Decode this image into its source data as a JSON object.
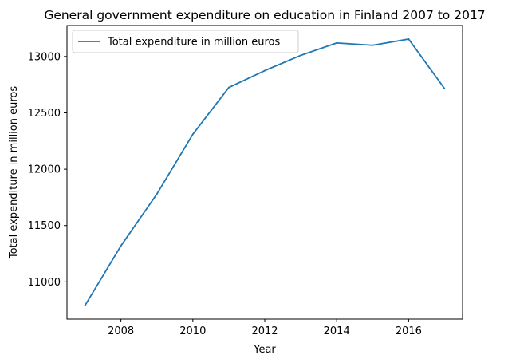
{
  "chart_data": {
    "type": "line",
    "title": "General government expenditure on education in Finland 2007 to 2017",
    "xlabel": "Year",
    "ylabel": "Total expenditure in million euros",
    "x": [
      2007,
      2008,
      2009,
      2010,
      2011,
      2012,
      2013,
      2014,
      2015,
      2016,
      2017
    ],
    "series": [
      {
        "name": "Total expenditure in million euros",
        "color": "#1f77b4",
        "values": [
          10790,
          11320,
          11780,
          12310,
          12725,
          12875,
          13010,
          13120,
          13100,
          13155,
          12715
        ]
      }
    ],
    "xlim": [
      2006.5,
      2017.5
    ],
    "ylim": [
      10670,
      13275
    ],
    "xticks": [
      2008,
      2010,
      2012,
      2014,
      2016
    ],
    "yticks": [
      11000,
      11500,
      12000,
      12500,
      13000
    ],
    "grid": false,
    "legend_position": "top-left"
  }
}
